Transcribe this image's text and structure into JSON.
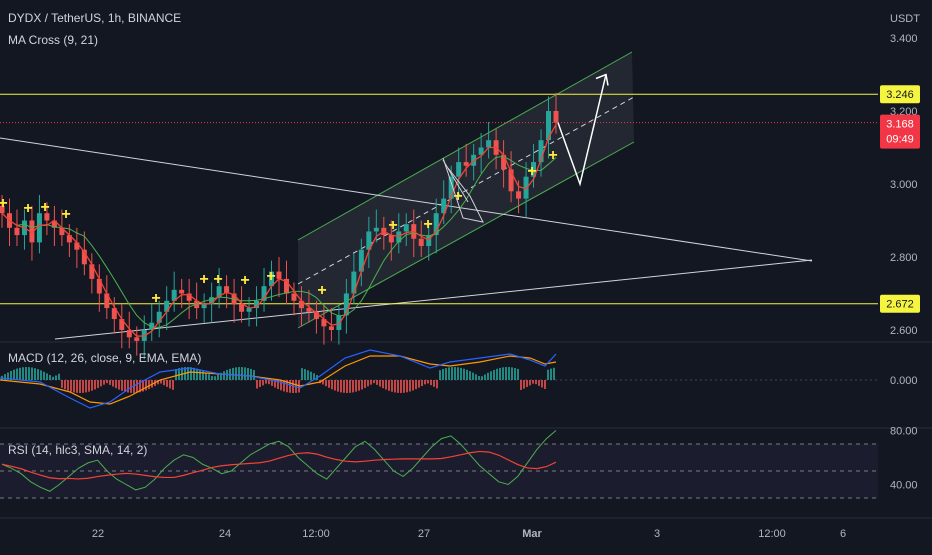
{
  "header": {
    "symbol_line": "DYDX / TetherUS, 1h, BINANCE",
    "indicator_line": "MA Cross (9, 21)",
    "currency": "USDT"
  },
  "colors": {
    "background": "#131722",
    "axis_text": "#b2b5be",
    "level_line": "#f5f540",
    "level_badge": "#f5f540",
    "price_badge": "#f23645",
    "channel": "#4caf50",
    "trendline": "#d1d4dc",
    "up_candle": "#26a69a",
    "down_candle": "#ef5350",
    "ma_fast": "#f44336",
    "ma_slow": "#4caf50",
    "cross_marker": "#ffeb3b",
    "macd_line": "#2962ff",
    "signal_line": "#ff9800",
    "rsi_line": "#4caf50",
    "rsi_ma": "#f44336"
  },
  "chart_data": [
    {
      "type": "candlestick",
      "title": "DYDX / TetherUS, 1h, BINANCE",
      "ylabel": "USDT",
      "ylim": [
        2.52,
        3.42
      ],
      "y_ticks": [
        "3.400",
        "3.200",
        "3.000",
        "2.800",
        "2.600"
      ],
      "x_ticks": [
        "22",
        "24",
        "12:00",
        "27",
        "Mar",
        "3",
        "12:00",
        "6"
      ],
      "grid": false,
      "levels": [
        {
          "label": "3.246",
          "value": 3.246
        },
        {
          "label": "2.672",
          "value": 2.672
        }
      ],
      "last_price": {
        "label": "3.168",
        "value": 3.168,
        "countdown": "09:49"
      },
      "series": [
        {
          "name": "MA Cross (9, 21)"
        }
      ],
      "close_approx": [
        2.92,
        2.88,
        2.86,
        2.9,
        2.84,
        2.92,
        2.9,
        2.88,
        2.86,
        2.84,
        2.82,
        2.78,
        2.74,
        2.7,
        2.66,
        2.63,
        2.6,
        2.58,
        2.57,
        2.6,
        2.62,
        2.65,
        2.68,
        2.71,
        2.7,
        2.68,
        2.66,
        2.67,
        2.69,
        2.72,
        2.7,
        2.67,
        2.65,
        2.66,
        2.68,
        2.72,
        2.76,
        2.74,
        2.7,
        2.68,
        2.66,
        2.65,
        2.63,
        2.61,
        2.6,
        2.64,
        2.7,
        2.76,
        2.82,
        2.87,
        2.88,
        2.86,
        2.84,
        2.87,
        2.89,
        2.85,
        2.83,
        2.86,
        2.92,
        2.96,
        3.02,
        3.06,
        3.05,
        3.08,
        3.1,
        3.12,
        3.08,
        3.04,
        2.98,
        2.96,
        3.02,
        3.06,
        3.12,
        3.2,
        3.168
      ],
      "forecast_path": [
        3.168,
        3.0,
        3.3
      ]
    },
    {
      "type": "line",
      "title": "MACD (12, 26, close, 9, EMA, EMA)",
      "y_ticks": [
        "0.000"
      ],
      "series": [
        {
          "name": "MACD"
        },
        {
          "name": "Signal"
        }
      ],
      "histogram_sign_sequence": "positive-negative-positive-negative-positive"
    },
    {
      "type": "line",
      "title": "RSI (14, hlc3, SMA, 14, 2)",
      "ylim": [
        30,
        82
      ],
      "y_ticks": [
        "80.00",
        "40.00"
      ],
      "bands": [
        70,
        50,
        30
      ],
      "series": [
        {
          "name": "RSI",
          "values": [
            55,
            52,
            48,
            42,
            38,
            35,
            40,
            46,
            52,
            56,
            58,
            50,
            44,
            40,
            36,
            38,
            44,
            52,
            58,
            62,
            60,
            55,
            52,
            48,
            50,
            56,
            62,
            66,
            70,
            72,
            68,
            60,
            54,
            48,
            44,
            52,
            60,
            68,
            72,
            66,
            58,
            50,
            46,
            52,
            60,
            68,
            74,
            76,
            70,
            62,
            54,
            48,
            42,
            40,
            46,
            56,
            66,
            74,
            80
          ]
        },
        {
          "name": "RSI-based MA"
        }
      ]
    }
  ]
}
